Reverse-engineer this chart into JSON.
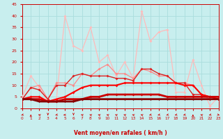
{
  "xlabel": "Vent moyen/en rafales ( km/h )",
  "xlim": [
    0,
    23
  ],
  "ylim": [
    0,
    45
  ],
  "yticks": [
    0,
    5,
    10,
    15,
    20,
    25,
    30,
    35,
    40,
    45
  ],
  "xticks": [
    0,
    1,
    2,
    3,
    4,
    5,
    6,
    7,
    8,
    9,
    10,
    11,
    12,
    13,
    14,
    15,
    16,
    17,
    18,
    19,
    20,
    21,
    22,
    23
  ],
  "background_color": "#c8eeee",
  "grid_color": "#aadddd",
  "series": [
    {
      "x": [
        0,
        1,
        2,
        3,
        4,
        5,
        6,
        7,
        8,
        9,
        10,
        11,
        12,
        13,
        14,
        15,
        16,
        17,
        18,
        19,
        20,
        21,
        22,
        23
      ],
      "y": [
        5,
        14,
        9,
        3,
        4,
        40,
        27,
        25,
        35,
        20,
        23,
        14,
        20,
        13,
        42,
        29,
        33,
        34,
        7,
        7,
        21,
        10,
        1,
        5
      ],
      "color": "#ffbbbb",
      "lw": 0.9,
      "marker": "D",
      "ms": 2.0
    },
    {
      "x": [
        0,
        1,
        2,
        3,
        4,
        5,
        6,
        7,
        8,
        9,
        10,
        11,
        12,
        13,
        14,
        15,
        16,
        17,
        18,
        19,
        20,
        21,
        22,
        23
      ],
      "y": [
        4,
        9,
        10,
        4,
        11,
        11,
        10,
        15,
        14,
        17,
        19,
        15,
        15,
        13,
        17,
        16,
        14,
        14,
        11,
        11,
        10,
        6,
        4,
        4
      ],
      "color": "#ff8888",
      "lw": 0.9,
      "marker": "D",
      "ms": 2.0
    },
    {
      "x": [
        0,
        1,
        2,
        3,
        4,
        5,
        6,
        7,
        8,
        9,
        10,
        11,
        12,
        13,
        14,
        15,
        16,
        17,
        18,
        19,
        20,
        21,
        22,
        23
      ],
      "y": [
        4,
        9,
        8,
        4,
        10,
        10,
        14,
        15,
        14,
        14,
        14,
        13,
        13,
        12,
        17,
        17,
        15,
        14,
        11,
        11,
        6,
        6,
        5,
        4
      ],
      "color": "#dd2222",
      "lw": 1.0,
      "marker": "D",
      "ms": 2.0
    },
    {
      "x": [
        0,
        1,
        2,
        3,
        4,
        5,
        6,
        7,
        8,
        9,
        10,
        11,
        12,
        13,
        14,
        15,
        16,
        17,
        18,
        19,
        20,
        21,
        22,
        23
      ],
      "y": [
        4,
        5,
        5,
        3,
        4,
        5,
        7,
        9,
        10,
        10,
        10,
        10,
        11,
        11,
        11,
        11,
        11,
        11,
        11,
        10,
        10,
        6,
        5,
        4
      ],
      "color": "#ff0000",
      "lw": 1.5,
      "marker": "D",
      "ms": 2.0
    },
    {
      "x": [
        0,
        1,
        2,
        3,
        4,
        5,
        6,
        7,
        8,
        9,
        10,
        11,
        12,
        13,
        14,
        15,
        16,
        17,
        18,
        19,
        20,
        21,
        22,
        23
      ],
      "y": [
        4,
        4,
        4,
        3,
        3,
        4,
        4,
        4,
        5,
        5,
        6,
        6,
        6,
        6,
        6,
        6,
        6,
        5,
        5,
        5,
        5,
        5,
        5,
        5
      ],
      "color": "#cc0000",
      "lw": 2.0,
      "marker": "D",
      "ms": 2.0
    },
    {
      "x": [
        0,
        1,
        2,
        3,
        4,
        5,
        6,
        7,
        8,
        9,
        10,
        11,
        12,
        13,
        14,
        15,
        16,
        17,
        18,
        19,
        20,
        21,
        22,
        23
      ],
      "y": [
        4,
        4,
        3,
        3,
        3,
        3,
        3,
        4,
        4,
        4,
        4,
        4,
        4,
        4,
        4,
        4,
        4,
        4,
        4,
        4,
        4,
        4,
        4,
        4
      ],
      "color": "#880000",
      "lw": 2.0,
      "marker": "D",
      "ms": 1.5
    }
  ],
  "arrow_angles_deg": [
    225,
    90,
    135,
    270,
    225,
    180,
    270,
    135,
    135,
    135,
    135,
    135,
    135,
    135,
    135,
    225,
    225,
    225,
    225,
    225,
    90,
    135,
    225,
    315
  ],
  "tick_color": "#cc0000",
  "axis_label_color": "#cc0000",
  "spine_color": "#cc0000"
}
